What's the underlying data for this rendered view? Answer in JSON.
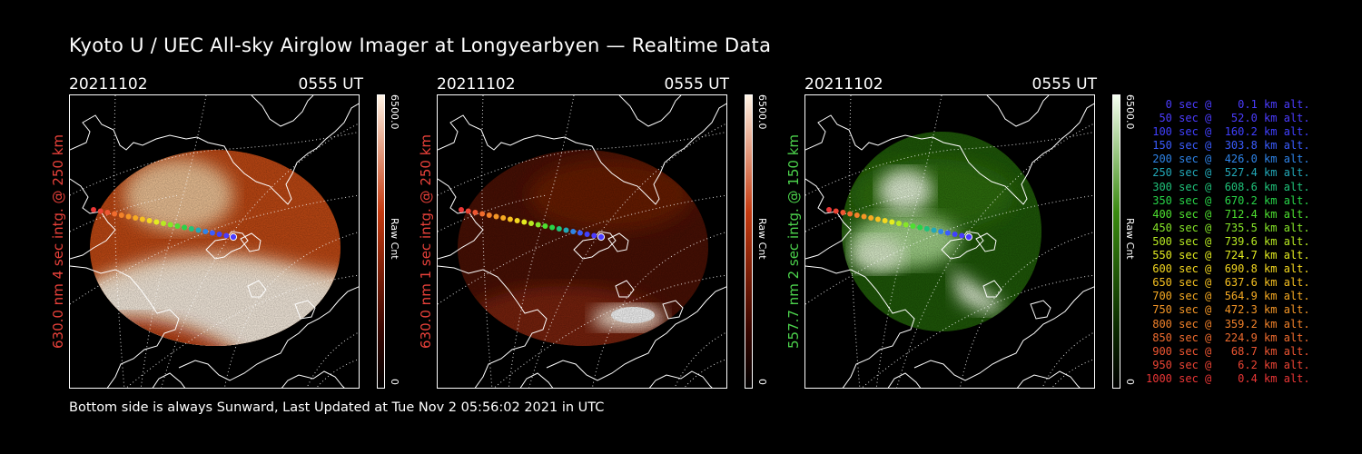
{
  "title": "Kyoto U / UEC All-sky Airglow Imager at Longyearbyen — Realtime Data",
  "footer": "Bottom side is always Sunward, Last Updated at Tue Nov  2 05:56:02 2021 in UTC",
  "panels": [
    {
      "date": "20211102",
      "time": "0555 UT",
      "ylabel": "630.0 nm 4 sec intg. @ 250 km",
      "ylabel_color": "#e8413a",
      "colorbar_max": "6500.0",
      "colorbar_min": "0",
      "colorbar_unit": "Raw Cnt",
      "cmap_light": "#fff3e4",
      "cmap_dark": "#3a0600"
    },
    {
      "date": "20211102",
      "time": "0555 UT",
      "ylabel": "630.0 nm 1 sec intg. @ 250 km",
      "ylabel_color": "#e8413a",
      "colorbar_max": "6500.0",
      "colorbar_min": "0",
      "colorbar_unit": "Raw Cnt",
      "cmap_light": "#fff3e4",
      "cmap_dark": "#3a0600"
    },
    {
      "date": "20211102",
      "time": "0555 UT",
      "ylabel": "557.7 nm 2 sec intg. @ 150 km",
      "ylabel_color": "#4cd34c",
      "colorbar_max": "6500.0",
      "colorbar_min": "0",
      "colorbar_unit": "Raw Cnt",
      "cmap_light": "#f5fff0",
      "cmap_dark": "#0a2a00"
    }
  ],
  "legend": [
    {
      "text": "   0 sec @    0.1 km alt.",
      "color": "#4b3cff"
    },
    {
      "text": "  50 sec @   52.0 km alt.",
      "color": "#4b3cff"
    },
    {
      "text": " 100 sec @  160.2 km alt.",
      "color": "#4040ff"
    },
    {
      "text": " 150 sec @  303.8 km alt.",
      "color": "#3a5cff"
    },
    {
      "text": " 200 sec @  426.0 km alt.",
      "color": "#2e84e8"
    },
    {
      "text": " 250 sec @  527.4 km alt.",
      "color": "#22a8b8"
    },
    {
      "text": " 300 sec @  608.6 km alt.",
      "color": "#1fc27a"
    },
    {
      "text": " 350 sec @  670.2 km alt.",
      "color": "#28d448"
    },
    {
      "text": " 400 sec @  712.4 km alt.",
      "color": "#4ee030"
    },
    {
      "text": " 450 sec @  735.5 km alt.",
      "color": "#86e628"
    },
    {
      "text": " 500 sec @  739.6 km alt.",
      "color": "#b8ea22"
    },
    {
      "text": " 550 sec @  724.7 km alt.",
      "color": "#e4ec20"
    },
    {
      "text": " 600 sec @  690.8 km alt.",
      "color": "#f4d820"
    },
    {
      "text": " 650 sec @  637.6 km alt.",
      "color": "#f6c020"
    },
    {
      "text": " 700 sec @  564.9 km alt.",
      "color": "#f6aa22"
    },
    {
      "text": " 750 sec @  472.3 km alt.",
      "color": "#f49626"
    },
    {
      "text": " 800 sec @  359.2 km alt.",
      "color": "#f2822a"
    },
    {
      "text": " 850 sec @  224.9 km alt.",
      "color": "#f06c2e"
    },
    {
      "text": " 900 sec @   68.7 km alt.",
      "color": "#ee5632"
    },
    {
      "text": " 950 sec @    6.2 km alt.",
      "color": "#ec4434"
    },
    {
      "text": "1000 sec @    0.4 km alt.",
      "color": "#ea3636"
    }
  ]
}
